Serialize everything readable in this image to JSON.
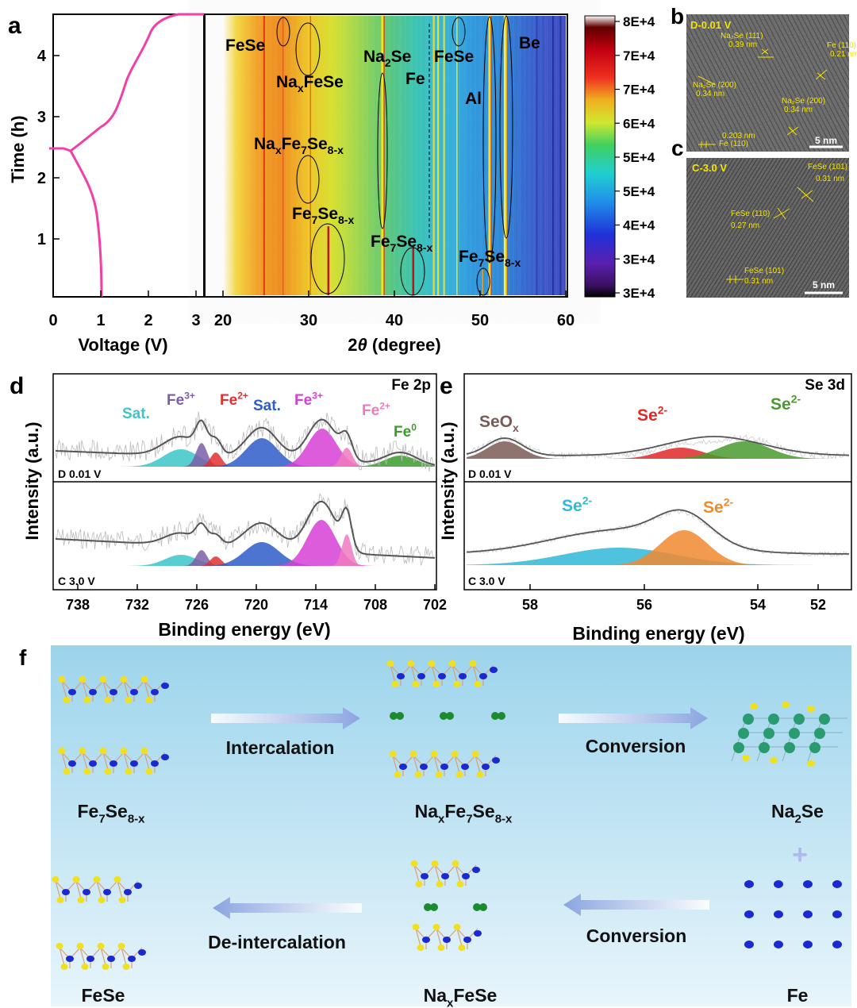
{
  "panels": {
    "a": {
      "letter": "a",
      "xlabel": "Voltage (V)",
      "ylabel": "Time (h)",
      "x_ticks": [
        "0",
        "1",
        "2",
        "3"
      ],
      "y_ticks": [
        "1",
        "2",
        "3",
        "4"
      ]
    },
    "a2": {
      "xlabel_prefix": "2",
      "xlabel_theta": "θ",
      "xlabel_suffix": " (degree)",
      "x_ticks": [
        "20",
        "30",
        "40",
        "50",
        "60"
      ],
      "phase_labels": [
        {
          "base": "FeSe"
        },
        {
          "base": "Na",
          "sub1": "x",
          "rest": "FeSe"
        },
        {
          "base": "Na",
          "sub1": "2",
          "rest": "Se"
        },
        {
          "base": "FeSe"
        },
        {
          "base": "Fe"
        },
        {
          "base": "Al"
        },
        {
          "base": "Be"
        },
        {
          "base": "Na",
          "sub1": "x",
          "rest": "Fe",
          "sub2": "7",
          "rest2": "Se",
          "sub3": "8-x"
        },
        {
          "base": "Fe",
          "sub1": "7",
          "rest": "Se",
          "sub2": "8-x"
        },
        {
          "base": "Fe",
          "sub1": "7",
          "rest": "Se",
          "sub2": "8-x"
        },
        {
          "base": "Fe",
          "sub1": "7",
          "rest": "Se",
          "sub2": "8-x"
        }
      ]
    },
    "colorbar": {
      "ticks": [
        "8E+4",
        "7E+4",
        "7E+4",
        "6E+4",
        "5E+4",
        "5E+4",
        "4E+4",
        "3E+4",
        "3E+4"
      ]
    },
    "b": {
      "letter": "b",
      "title": "D-0.01 V",
      "scale": "5 nm",
      "annotations": [
        "Na₂Se (111)",
        "0.39 nm",
        "Fe (110)",
        "0.21 nm",
        "Na₂Se (200)",
        "0.34 nm",
        "Na₂Se (200)",
        "0.34 nm",
        "Fe (110)",
        "0.203 nm"
      ]
    },
    "c": {
      "letter": "c",
      "title": "C-3.0 V",
      "scale": "5 nm",
      "annotations": [
        "FeSe (101)",
        "0.31 nm",
        "FeSe (110)",
        "0.27 nm",
        "FeSe (101)",
        "0.31 nm"
      ]
    },
    "d": {
      "letter": "d",
      "title": "Fe 2p",
      "top_label": "D 0.01 V",
      "bottom_label": "C 3.0 V",
      "xlabel": "Binding energy (eV)",
      "ylabel": "Intensity (a.u.)",
      "x_ticks": [
        "738",
        "732",
        "726",
        "720",
        "714",
        "708",
        "702"
      ],
      "peaks": [
        {
          "base": "Sat.",
          "color": "#3cc6c8"
        },
        {
          "base": "Fe",
          "sup": "3+",
          "color": "#7b5ea7"
        },
        {
          "base": "Fe",
          "sup": "2+",
          "color": "#e03030"
        },
        {
          "base": "Sat.",
          "color": "#2e5cc8"
        },
        {
          "base": "Fe",
          "sup": "3+",
          "color": "#d63fd6"
        },
        {
          "base": "Fe",
          "sup": "2+",
          "color": "#ee7ac0"
        },
        {
          "base": "Fe",
          "sup": "0",
          "color": "#3a9a2a"
        }
      ]
    },
    "e": {
      "letter": "e",
      "title": "Se 3d",
      "top_label": "D 0.01 V",
      "bottom_label": "C 3.0 V",
      "xlabel": "Binding energy (eV)",
      "ylabel": "Intensity (a.u.)",
      "x_ticks": [
        "58",
        "56",
        "54",
        "52"
      ],
      "peaks": [
        {
          "base": "SeO",
          "sub": "x",
          "color": "#7a5a55"
        },
        {
          "base": "Se",
          "sup": "2-",
          "color": "#e02828"
        },
        {
          "base": "Se",
          "sup": "2-",
          "color": "#4a9a30"
        },
        {
          "base": "Se",
          "sup": "2-",
          "color": "#30b8d8"
        },
        {
          "base": "Se",
          "sup": "2-",
          "color": "#f08a30"
        }
      ]
    },
    "f": {
      "letter": "f",
      "arrows": [
        "Intercalation",
        "Conversion",
        "Conversion",
        "De-intercalation"
      ],
      "structures": [
        {
          "base": "Fe",
          "sub1": "7",
          "rest": "Se",
          "sub2": "8-x"
        },
        {
          "base": "Na",
          "sub1": "x",
          "rest": "Fe",
          "sub2": "7",
          "rest2": "Se",
          "sub3": "8-x"
        },
        {
          "base": "Na",
          "sub1": "2",
          "rest": "Se"
        },
        {
          "base": "FeSe"
        },
        {
          "base": "Na",
          "sub1": "x",
          "rest": "FeSe"
        },
        {
          "base": "Fe"
        }
      ],
      "plus": "+"
    }
  }
}
